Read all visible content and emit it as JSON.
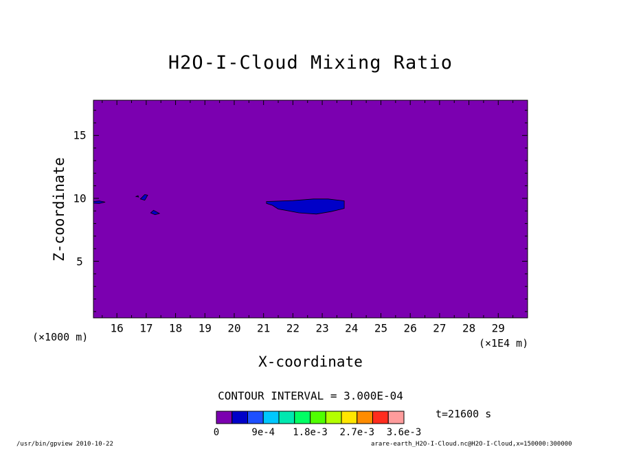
{
  "chart_data": {
    "type": "contour",
    "title": "H2O-I-Cloud Mixing Ratio",
    "xlabel": "X-coordinate",
    "ylabel": "Z-coordinate",
    "x_unit_left": "(×1000 m)",
    "x_unit_right": "(×1E4 m)",
    "xlim": [
      15.2,
      30.0
    ],
    "ylim": [
      0.5,
      17.8
    ],
    "x_ticks": [
      "16",
      "17",
      "18",
      "19",
      "20",
      "21",
      "22",
      "23",
      "24",
      "25",
      "26",
      "27",
      "28",
      "29"
    ],
    "y_ticks": [
      "5",
      "10",
      "15"
    ],
    "contour_interval": "CONTOUR INTERVAL = 3.000E-04",
    "time_label": "t=21600 s",
    "background_level": 0,
    "colors": {
      "background": "#7b00b0",
      "level1": "#0000c8",
      "outline": "#000000"
    },
    "colorbar": {
      "colors": [
        "#7b00b0",
        "#0000c8",
        "#1e50ff",
        "#00c8ff",
        "#00e8b0",
        "#00ff64",
        "#50ff00",
        "#b4ff00",
        "#ffe600",
        "#ff8c00",
        "#ff2d1e",
        "#ff9c9c"
      ],
      "labels": [
        {
          "text": "0",
          "index": 0
        },
        {
          "text": "9e-4",
          "index": 3
        },
        {
          "text": "1.8e-3",
          "index": 6
        },
        {
          "text": "2.7e-3",
          "index": 9
        },
        {
          "text": "3.6e-3",
          "index": 12
        }
      ]
    },
    "regions": [
      {
        "level": 1,
        "points": [
          [
            21.1,
            9.75
          ],
          [
            22.0,
            9.82
          ],
          [
            22.7,
            9.95
          ],
          [
            23.2,
            9.95
          ],
          [
            23.75,
            9.8
          ],
          [
            23.75,
            9.2
          ],
          [
            23.3,
            8.95
          ],
          [
            22.8,
            8.75
          ],
          [
            22.2,
            8.85
          ],
          [
            21.75,
            9.05
          ],
          [
            21.5,
            9.15
          ],
          [
            21.3,
            9.45
          ],
          [
            21.1,
            9.6
          ]
        ]
      },
      {
        "level": 1,
        "points": [
          [
            15.2,
            9.75
          ],
          [
            15.4,
            9.8
          ],
          [
            15.6,
            9.7
          ],
          [
            15.4,
            9.6
          ],
          [
            15.2,
            9.62
          ]
        ]
      },
      {
        "level": 1,
        "points": [
          [
            16.8,
            9.95
          ],
          [
            16.95,
            10.3
          ],
          [
            17.05,
            10.25
          ],
          [
            16.95,
            9.85
          ]
        ]
      },
      {
        "level": 1,
        "points": [
          [
            16.65,
            10.15
          ],
          [
            16.72,
            10.22
          ],
          [
            16.74,
            10.1
          ]
        ]
      },
      {
        "level": 1,
        "points": [
          [
            17.15,
            8.85
          ],
          [
            17.25,
            9.05
          ],
          [
            17.45,
            8.8
          ],
          [
            17.3,
            8.7
          ]
        ]
      }
    ]
  },
  "footer": {
    "left": "/usr/bin/gpview  2010-10-22",
    "right": "arare-earth_H2O-I-Cloud.nc@H2O-I-Cloud,x=150000:300000"
  }
}
